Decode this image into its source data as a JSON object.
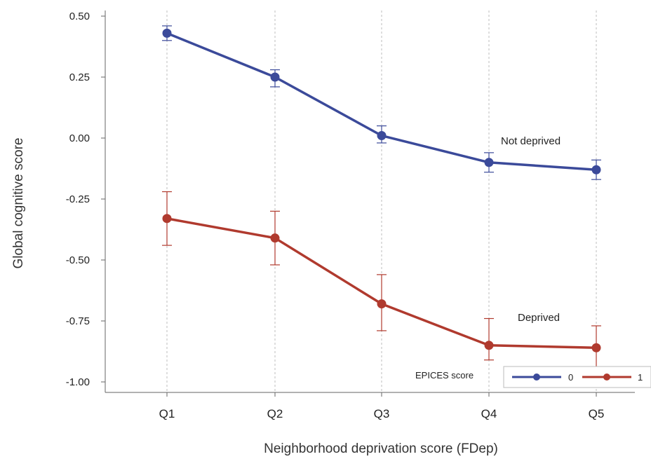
{
  "chart_data": {
    "type": "line",
    "xlabel": "Neighborhood deprivation score (FDep)",
    "ylabel": "Global cognitive score",
    "categories": [
      "Q1",
      "Q2",
      "Q3",
      "Q4",
      "Q5"
    ],
    "ylim": [
      -1.0,
      0.5
    ],
    "yticks": [
      0.5,
      0.25,
      0.0,
      -0.25,
      -0.5,
      -0.75,
      -1.0
    ],
    "ytick_labels": [
      "0.50",
      "0.25",
      "0.00",
      "-0.25",
      "-0.50",
      "-0.75",
      "-1.00"
    ],
    "grid": "vertical dotted lines at categories",
    "series": [
      {
        "name": "0",
        "color": "#3b4a9a",
        "values": [
          0.43,
          0.25,
          0.01,
          -0.1,
          -0.13
        ],
        "error_low": [
          0.4,
          0.21,
          -0.02,
          -0.14,
          -0.17
        ],
        "error_high": [
          0.46,
          0.28,
          0.05,
          -0.06,
          -0.09
        ]
      },
      {
        "name": "1",
        "color": "#b03a2e",
        "values": [
          -0.33,
          -0.41,
          -0.68,
          -0.85,
          -0.86
        ],
        "error_low": [
          -0.44,
          -0.52,
          -0.79,
          -0.91,
          -0.96
        ],
        "error_high": [
          -0.22,
          -0.3,
          -0.56,
          -0.74,
          -0.77
        ]
      }
    ],
    "annotations": [
      {
        "text": "Not deprived",
        "series": "0"
      },
      {
        "text": "Deprived",
        "series": "1"
      }
    ],
    "legend": {
      "title": "EPICES score",
      "placement": "bottom-right"
    }
  }
}
